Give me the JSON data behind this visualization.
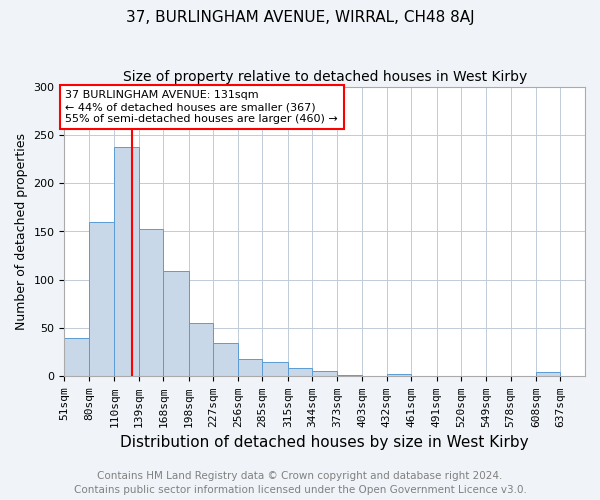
{
  "title": "37, BURLINGHAM AVENUE, WIRRAL, CH48 8AJ",
  "subtitle": "Size of property relative to detached houses in West Kirby",
  "xlabel": "Distribution of detached houses by size in West Kirby",
  "ylabel": "Number of detached properties",
  "footer_line1": "Contains HM Land Registry data © Crown copyright and database right 2024.",
  "footer_line2": "Contains public sector information licensed under the Open Government Licence v3.0.",
  "categories": [
    "51sqm",
    "80sqm",
    "110sqm",
    "139sqm",
    "168sqm",
    "198sqm",
    "227sqm",
    "256sqm",
    "285sqm",
    "315sqm",
    "344sqm",
    "373sqm",
    "403sqm",
    "432sqm",
    "461sqm",
    "491sqm",
    "520sqm",
    "549sqm",
    "578sqm",
    "608sqm",
    "637sqm"
  ],
  "values": [
    40,
    160,
    237,
    153,
    109,
    55,
    35,
    18,
    15,
    9,
    6,
    2,
    0,
    3,
    0,
    0,
    0,
    0,
    0,
    5,
    0
  ],
  "bar_color": "#c8d8e8",
  "bar_edge_color": "#5b9bd5",
  "bin_edges": [
    51,
    80,
    110,
    139,
    168,
    198,
    227,
    256,
    285,
    315,
    344,
    373,
    403,
    432,
    461,
    491,
    520,
    549,
    578,
    608,
    637,
    666
  ],
  "annotation_text": "37 BURLINGHAM AVENUE: 131sqm\n← 44% of detached houses are smaller (367)\n55% of semi-detached houses are larger (460) →",
  "annotation_box_color": "white",
  "annotation_box_edge_color": "red",
  "vline_color": "red",
  "vline_x": 131,
  "ylim": [
    0,
    300
  ],
  "yticks": [
    0,
    50,
    100,
    150,
    200,
    250,
    300
  ],
  "background_color": "#f0f4f8",
  "plot_bg_color": "white",
  "title_fontsize": 11,
  "subtitle_fontsize": 10,
  "xlabel_fontsize": 11,
  "ylabel_fontsize": 9,
  "tick_fontsize": 8,
  "annotation_fontsize": 8,
  "footer_fontsize": 7.5
}
